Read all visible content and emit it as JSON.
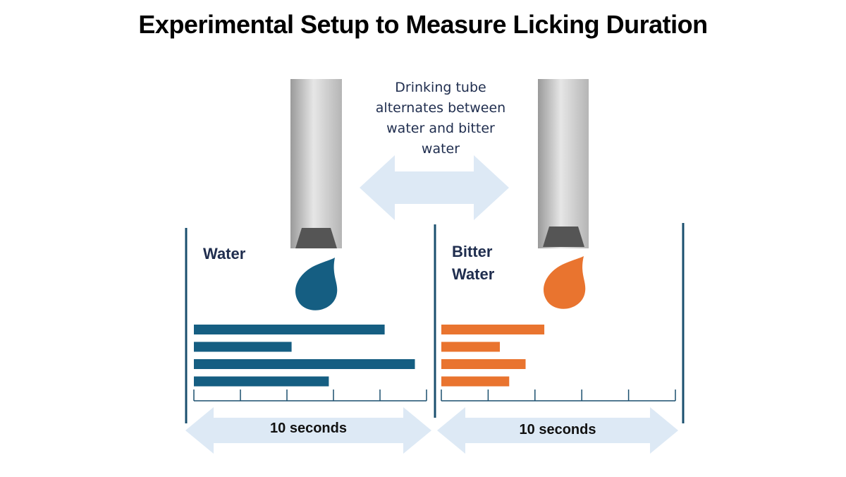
{
  "title": "Experimental Setup to Measure Licking Duration",
  "caption": "Drinking tube alternates between water and bitter water",
  "panels": [
    {
      "label": "Water",
      "color": "#155e82",
      "bars": [
        8.2,
        4.2,
        9.5,
        5.8
      ],
      "xlim": [
        0,
        10
      ],
      "xticks": [
        0,
        2,
        4,
        6,
        8,
        10
      ],
      "duration_label": "10 seconds"
    },
    {
      "label": "Bitter Water",
      "color": "#e9742f",
      "bars": [
        4.4,
        2.5,
        3.6,
        2.9
      ],
      "xlim": [
        0,
        10
      ],
      "xticks": [
        0,
        2,
        4,
        6,
        8,
        10
      ],
      "duration_label": "10 seconds"
    }
  ]
}
